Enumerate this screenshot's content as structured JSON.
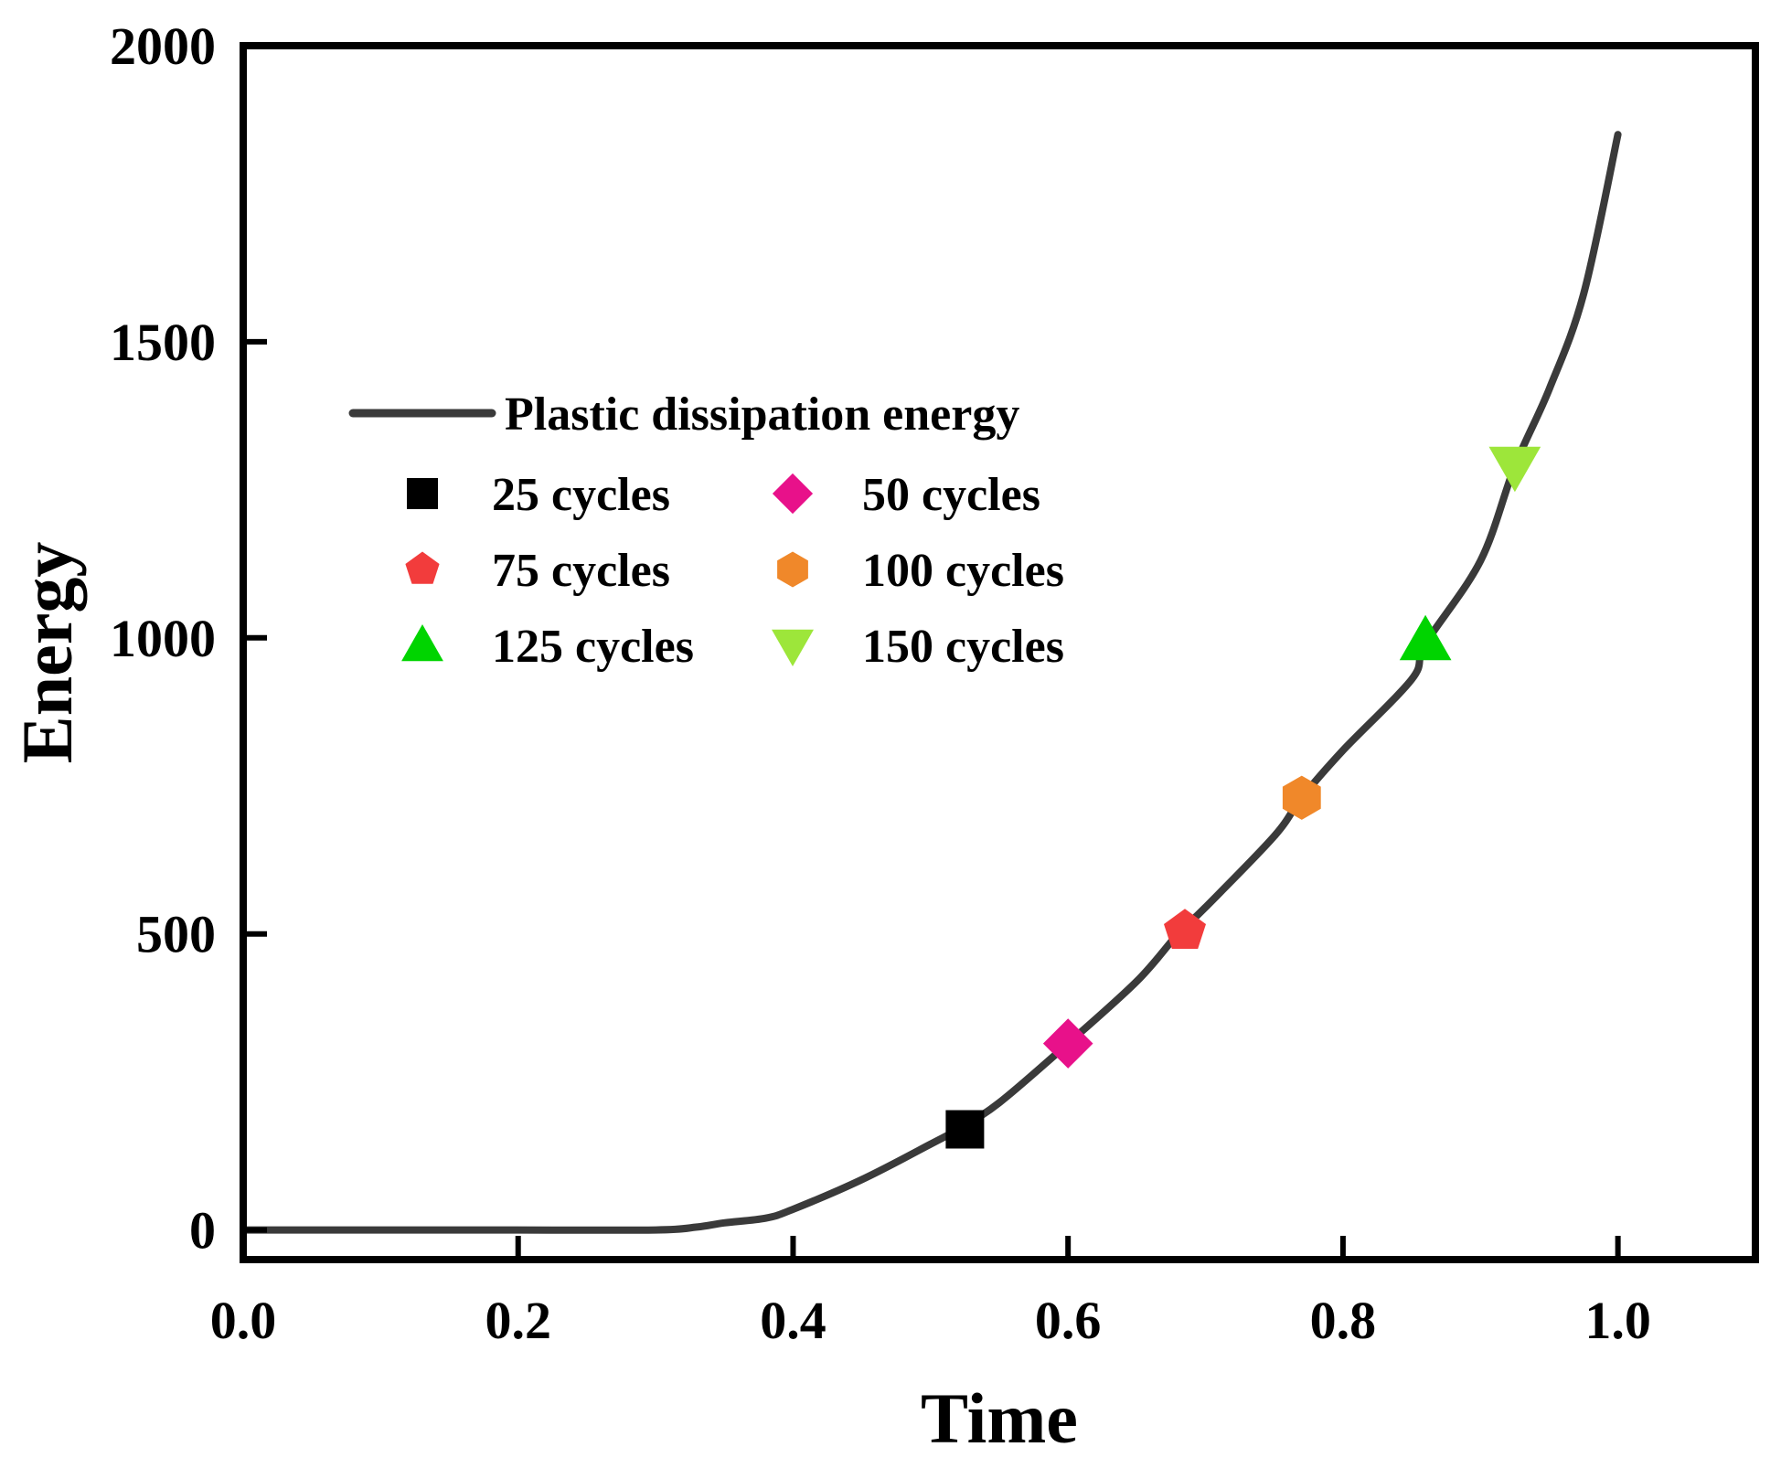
{
  "chart_data": {
    "type": "line",
    "xlabel": "Time",
    "ylabel": "Energy",
    "xlim": [
      0.0,
      1.1
    ],
    "ylim": [
      -50,
      2000
    ],
    "xticks": [
      0.0,
      0.2,
      0.4,
      0.6,
      0.8,
      1.0
    ],
    "xtick_labels": [
      "0.0",
      "0.2",
      "0.4",
      "0.6",
      "0.8",
      "1.0"
    ],
    "yticks": [
      0,
      500,
      1000,
      1500,
      2000
    ],
    "ytick_labels": [
      "0",
      "500",
      "1000",
      "1500",
      "2000"
    ],
    "grid": false,
    "legend_position": "upper-left",
    "line_series": {
      "name": "Plastic dissipation energy",
      "color": "#3a3a3a",
      "x": [
        0.0,
        0.1,
        0.2,
        0.3,
        0.33,
        0.35,
        0.38,
        0.4,
        0.45,
        0.5,
        0.52,
        0.55,
        0.6,
        0.65,
        0.68,
        0.7,
        0.75,
        0.77,
        0.8,
        0.85,
        0.86,
        0.9,
        0.925,
        0.95,
        0.975,
        1.0
      ],
      "y": [
        0,
        0,
        0,
        0,
        5,
        12,
        20,
        35,
        85,
        145,
        170,
        215,
        315,
        420,
        500,
        545,
        665,
        730,
        810,
        930,
        990,
        1130,
        1290,
        1420,
        1580,
        1850
      ]
    },
    "marker_series": [
      {
        "name": "25 cycles",
        "shape": "square",
        "color": "#000000",
        "x": 0.525,
        "y": 170
      },
      {
        "name": "50 cycles",
        "shape": "diamond",
        "color": "#e8118a",
        "x": 0.6,
        "y": 315
      },
      {
        "name": "75 cycles",
        "shape": "pentagon",
        "color": "#f23c3c",
        "x": 0.685,
        "y": 505
      },
      {
        "name": "100 cycles",
        "shape": "hexagon",
        "color": "#f0882a",
        "x": 0.77,
        "y": 730
      },
      {
        "name": "125 cycles",
        "shape": "triangle-up",
        "color": "#00d400",
        "x": 0.86,
        "y": 995
      },
      {
        "name": "150 cycles",
        "shape": "triangle-down",
        "color": "#9de63a",
        "x": 0.925,
        "y": 1290
      }
    ]
  }
}
